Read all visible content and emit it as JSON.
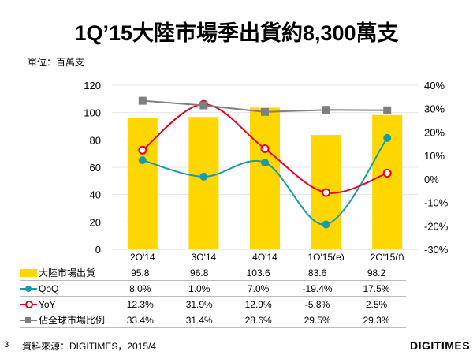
{
  "title": "1Q’15大陸市場季出貨約8,300萬支",
  "unit": "單位：百萬支",
  "page_number": "3",
  "source": "資料來源：DIGITIMES，2015/4",
  "logo": "DIGITIMES",
  "chart_data": {
    "type": "bar+line",
    "categories": [
      "2Q'14",
      "3Q'14",
      "4Q'14",
      "1Q'15(e)",
      "2Q'15(f)"
    ],
    "left_axis": {
      "ylim": [
        0,
        120
      ],
      "ticks": [
        "0",
        "20",
        "40",
        "60",
        "80",
        "100",
        "120"
      ]
    },
    "right_axis": {
      "ylim": [
        -30,
        40
      ],
      "ticks": [
        "-30%",
        "-20%",
        "-10%",
        "0%",
        "10%",
        "20%",
        "30%",
        "40%"
      ]
    },
    "grid": true,
    "series": [
      {
        "name": "大陸市場出貨",
        "type": "bar",
        "axis": "left",
        "color": "#FFD700",
        "values": [
          95.8,
          96.8,
          103.6,
          83.6,
          98.2
        ],
        "labels": [
          "95.8",
          "96.8",
          "103.6",
          "83.6",
          "98.2"
        ]
      },
      {
        "name": "QoQ",
        "type": "line",
        "axis": "right",
        "color": "#1A9AAA",
        "marker": "filled-circle",
        "values": [
          8.0,
          1.0,
          7.0,
          -19.4,
          17.5
        ],
        "labels": [
          "8.0%",
          "1.0%",
          "7.0%",
          "-19.4%",
          "17.5%"
        ]
      },
      {
        "name": "YoY",
        "type": "line",
        "axis": "right",
        "color": "#E8001C",
        "marker": "hollow-circle",
        "values": [
          12.3,
          31.9,
          12.9,
          -5.8,
          2.5
        ],
        "labels": [
          "12.3%",
          "31.9%",
          "12.9%",
          "-5.8%",
          "2.5%"
        ]
      },
      {
        "name": "佔全球市場比例",
        "type": "line",
        "axis": "right",
        "color": "#7F7F7F",
        "marker": "square",
        "values": [
          33.4,
          31.4,
          28.6,
          29.5,
          29.3
        ],
        "labels": [
          "33.4%",
          "31.4%",
          "28.6%",
          "29.5%",
          "29.3%"
        ]
      }
    ]
  }
}
